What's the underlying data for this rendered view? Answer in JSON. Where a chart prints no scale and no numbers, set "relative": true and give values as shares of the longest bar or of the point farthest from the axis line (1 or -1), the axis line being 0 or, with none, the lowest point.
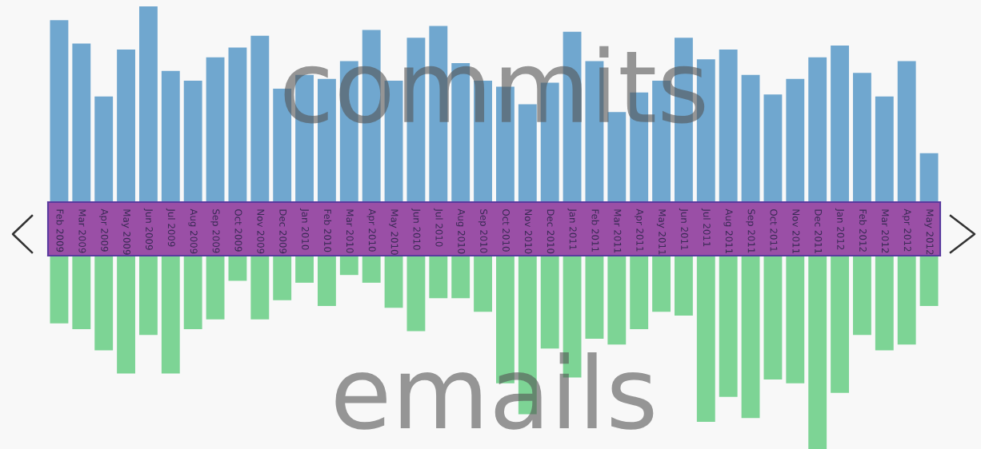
{
  "chart_data": [
    {
      "type": "bar",
      "relative": true,
      "categories": [
        "Feb 2009",
        "Mar 2009",
        "Apr 2009",
        "May 2009",
        "Jun 2009",
        "Jul 2009",
        "Aug 2009",
        "Sep 2009",
        "Oct 2009",
        "Nov 2009",
        "Dec 2009",
        "Jan 2010",
        "Feb 2010",
        "Mar 2010",
        "Apr 2010",
        "May 2010",
        "Jun 2010",
        "Jul 2010",
        "Aug 2010",
        "Sep 2010",
        "Oct 2010",
        "Nov 2010",
        "Dec 2010",
        "Jan 2011",
        "Feb 2011",
        "Mar 2011",
        "Apr 2011",
        "May 2011",
        "Jun 2011",
        "Jul 2011",
        "Aug 2011",
        "Sep 2011",
        "Oct 2011",
        "Nov 2011",
        "Dec 2011",
        "Jan 2012",
        "Feb 2012",
        "Mar 2012",
        "Apr 2012",
        "May 2012"
      ],
      "series": [
        {
          "name": "commits",
          "color": "#70a7cf",
          "values": [
            0.93,
            0.81,
            0.54,
            0.78,
            1,
            0.67,
            0.62,
            0.74,
            0.79,
            0.85,
            0.58,
            0.65,
            0.63,
            0.72,
            0.88,
            0.62,
            0.84,
            0.9,
            0.71,
            0.62,
            0.59,
            0.5,
            0.61,
            0.87,
            0.72,
            0.46,
            0.56,
            0.62,
            0.84,
            0.73,
            0.78,
            0.65,
            0.55,
            0.63,
            0.74,
            0.8,
            0.66,
            0.54,
            0.72,
            0.25
          ]
        }
      ]
    },
    {
      "type": "bar",
      "relative": true,
      "categories": [
        null,
        null,
        null,
        null,
        null,
        null,
        null,
        null,
        null,
        null,
        null,
        null,
        null,
        null,
        null,
        null,
        null,
        null,
        null,
        null,
        null,
        null,
        null,
        null,
        null,
        null,
        null,
        null,
        null,
        null,
        null,
        null,
        null,
        null,
        null,
        null,
        null,
        null,
        null,
        null
      ],
      "series": [
        {
          "name": "emails",
          "color": "#7dd495",
          "values": [
            -0.35,
            -0.38,
            -0.49,
            -0.61,
            -0.41,
            -0.61,
            -0.38,
            -0.33,
            -0.13,
            -0.33,
            -0.23,
            -0.14,
            -0.26,
            -0.1,
            -0.14,
            -0.27,
            -0.39,
            -0.22,
            -0.22,
            -0.29,
            -0.66,
            -0.82,
            -0.48,
            -0.63,
            -0.43,
            -0.46,
            -0.38,
            -0.29,
            -0.31,
            -0.86,
            -0.73,
            -0.84,
            -0.64,
            -0.66,
            -1,
            -0.71,
            -0.41,
            -0.49,
            -0.46,
            -0.26
          ]
        }
      ]
    }
  ]
}
